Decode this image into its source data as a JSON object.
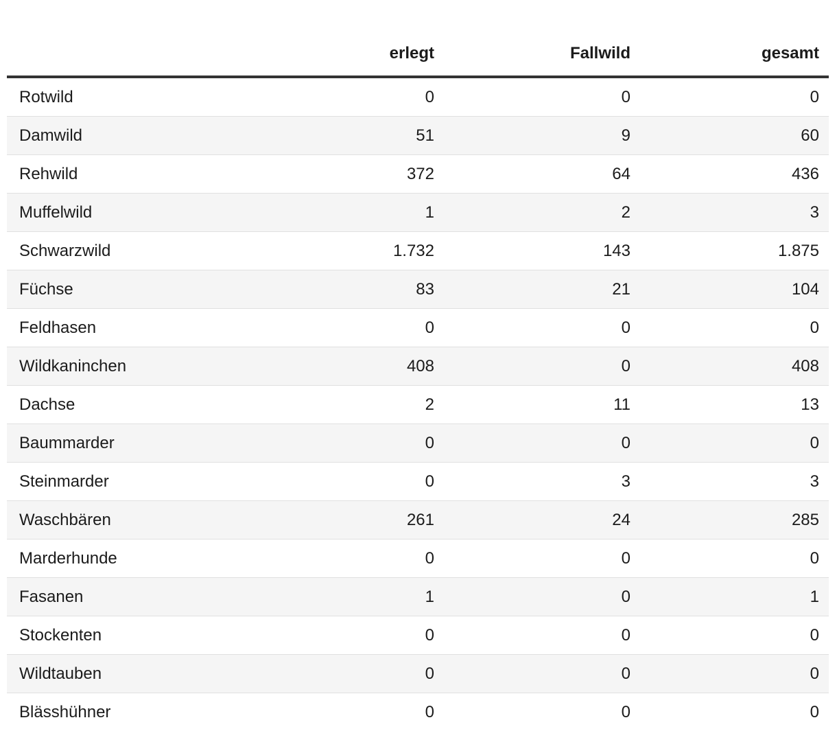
{
  "colors": {
    "background": "#ffffff",
    "text": "#1b1b1b",
    "header_rule": "#333333",
    "row_stripe": "#f5f5f5",
    "row_divider": "#e0e0e0"
  },
  "table": {
    "columns": [
      {
        "key": "label",
        "label": ""
      },
      {
        "key": "erlegt",
        "label": "erlegt"
      },
      {
        "key": "fallwild",
        "label": "Fallwild"
      },
      {
        "key": "gesamt",
        "label": "gesamt"
      }
    ],
    "rows": [
      {
        "label": "Rotwild",
        "erlegt": "0",
        "fallwild": "0",
        "gesamt": "0"
      },
      {
        "label": "Damwild",
        "erlegt": "51",
        "fallwild": "9",
        "gesamt": "60"
      },
      {
        "label": "Rehwild",
        "erlegt": "372",
        "fallwild": "64",
        "gesamt": "436"
      },
      {
        "label": "Muffelwild",
        "erlegt": "1",
        "fallwild": "2",
        "gesamt": "3"
      },
      {
        "label": "Schwarzwild",
        "erlegt": "1.732",
        "fallwild": "143",
        "gesamt": "1.875"
      },
      {
        "label": "Füchse",
        "erlegt": "83",
        "fallwild": "21",
        "gesamt": "104"
      },
      {
        "label": "Feldhasen",
        "erlegt": "0",
        "fallwild": "0",
        "gesamt": "0"
      },
      {
        "label": "Wildkaninchen",
        "erlegt": "408",
        "fallwild": "0",
        "gesamt": "408"
      },
      {
        "label": "Dachse",
        "erlegt": "2",
        "fallwild": "11",
        "gesamt": "13"
      },
      {
        "label": "Baummarder",
        "erlegt": "0",
        "fallwild": "0",
        "gesamt": "0"
      },
      {
        "label": "Steinmarder",
        "erlegt": "0",
        "fallwild": "3",
        "gesamt": "3"
      },
      {
        "label": "Waschbären",
        "erlegt": "261",
        "fallwild": "24",
        "gesamt": "285"
      },
      {
        "label": "Marderhunde",
        "erlegt": "0",
        "fallwild": "0",
        "gesamt": "0"
      },
      {
        "label": "Fasanen",
        "erlegt": "1",
        "fallwild": "0",
        "gesamt": "1"
      },
      {
        "label": "Stockenten",
        "erlegt": "0",
        "fallwild": "0",
        "gesamt": "0"
      },
      {
        "label": "Wildtauben",
        "erlegt": "0",
        "fallwild": "0",
        "gesamt": "0"
      },
      {
        "label": "Blässhühner",
        "erlegt": "0",
        "fallwild": "0",
        "gesamt": "0"
      }
    ]
  },
  "chart_data": {
    "type": "table",
    "title": "",
    "categories": [
      "Rotwild",
      "Damwild",
      "Rehwild",
      "Muffelwild",
      "Schwarzwild",
      "Füchse",
      "Feldhasen",
      "Wildkaninchen",
      "Dachse",
      "Baummarder",
      "Steinmarder",
      "Waschbären",
      "Marderhunde",
      "Fasanen",
      "Stockenten",
      "Wildtauben",
      "Blässhühner"
    ],
    "series": [
      {
        "name": "erlegt",
        "values": [
          0,
          51,
          372,
          1,
          1732,
          83,
          0,
          408,
          2,
          0,
          0,
          261,
          0,
          1,
          0,
          0,
          0
        ]
      },
      {
        "name": "Fallwild",
        "values": [
          0,
          9,
          64,
          2,
          143,
          21,
          0,
          0,
          11,
          0,
          3,
          24,
          0,
          0,
          0,
          0,
          0
        ]
      },
      {
        "name": "gesamt",
        "values": [
          0,
          60,
          436,
          3,
          1875,
          104,
          0,
          408,
          13,
          0,
          3,
          285,
          0,
          1,
          0,
          0,
          0
        ]
      }
    ],
    "number_format": "German locale, '.' as thousands separator"
  }
}
